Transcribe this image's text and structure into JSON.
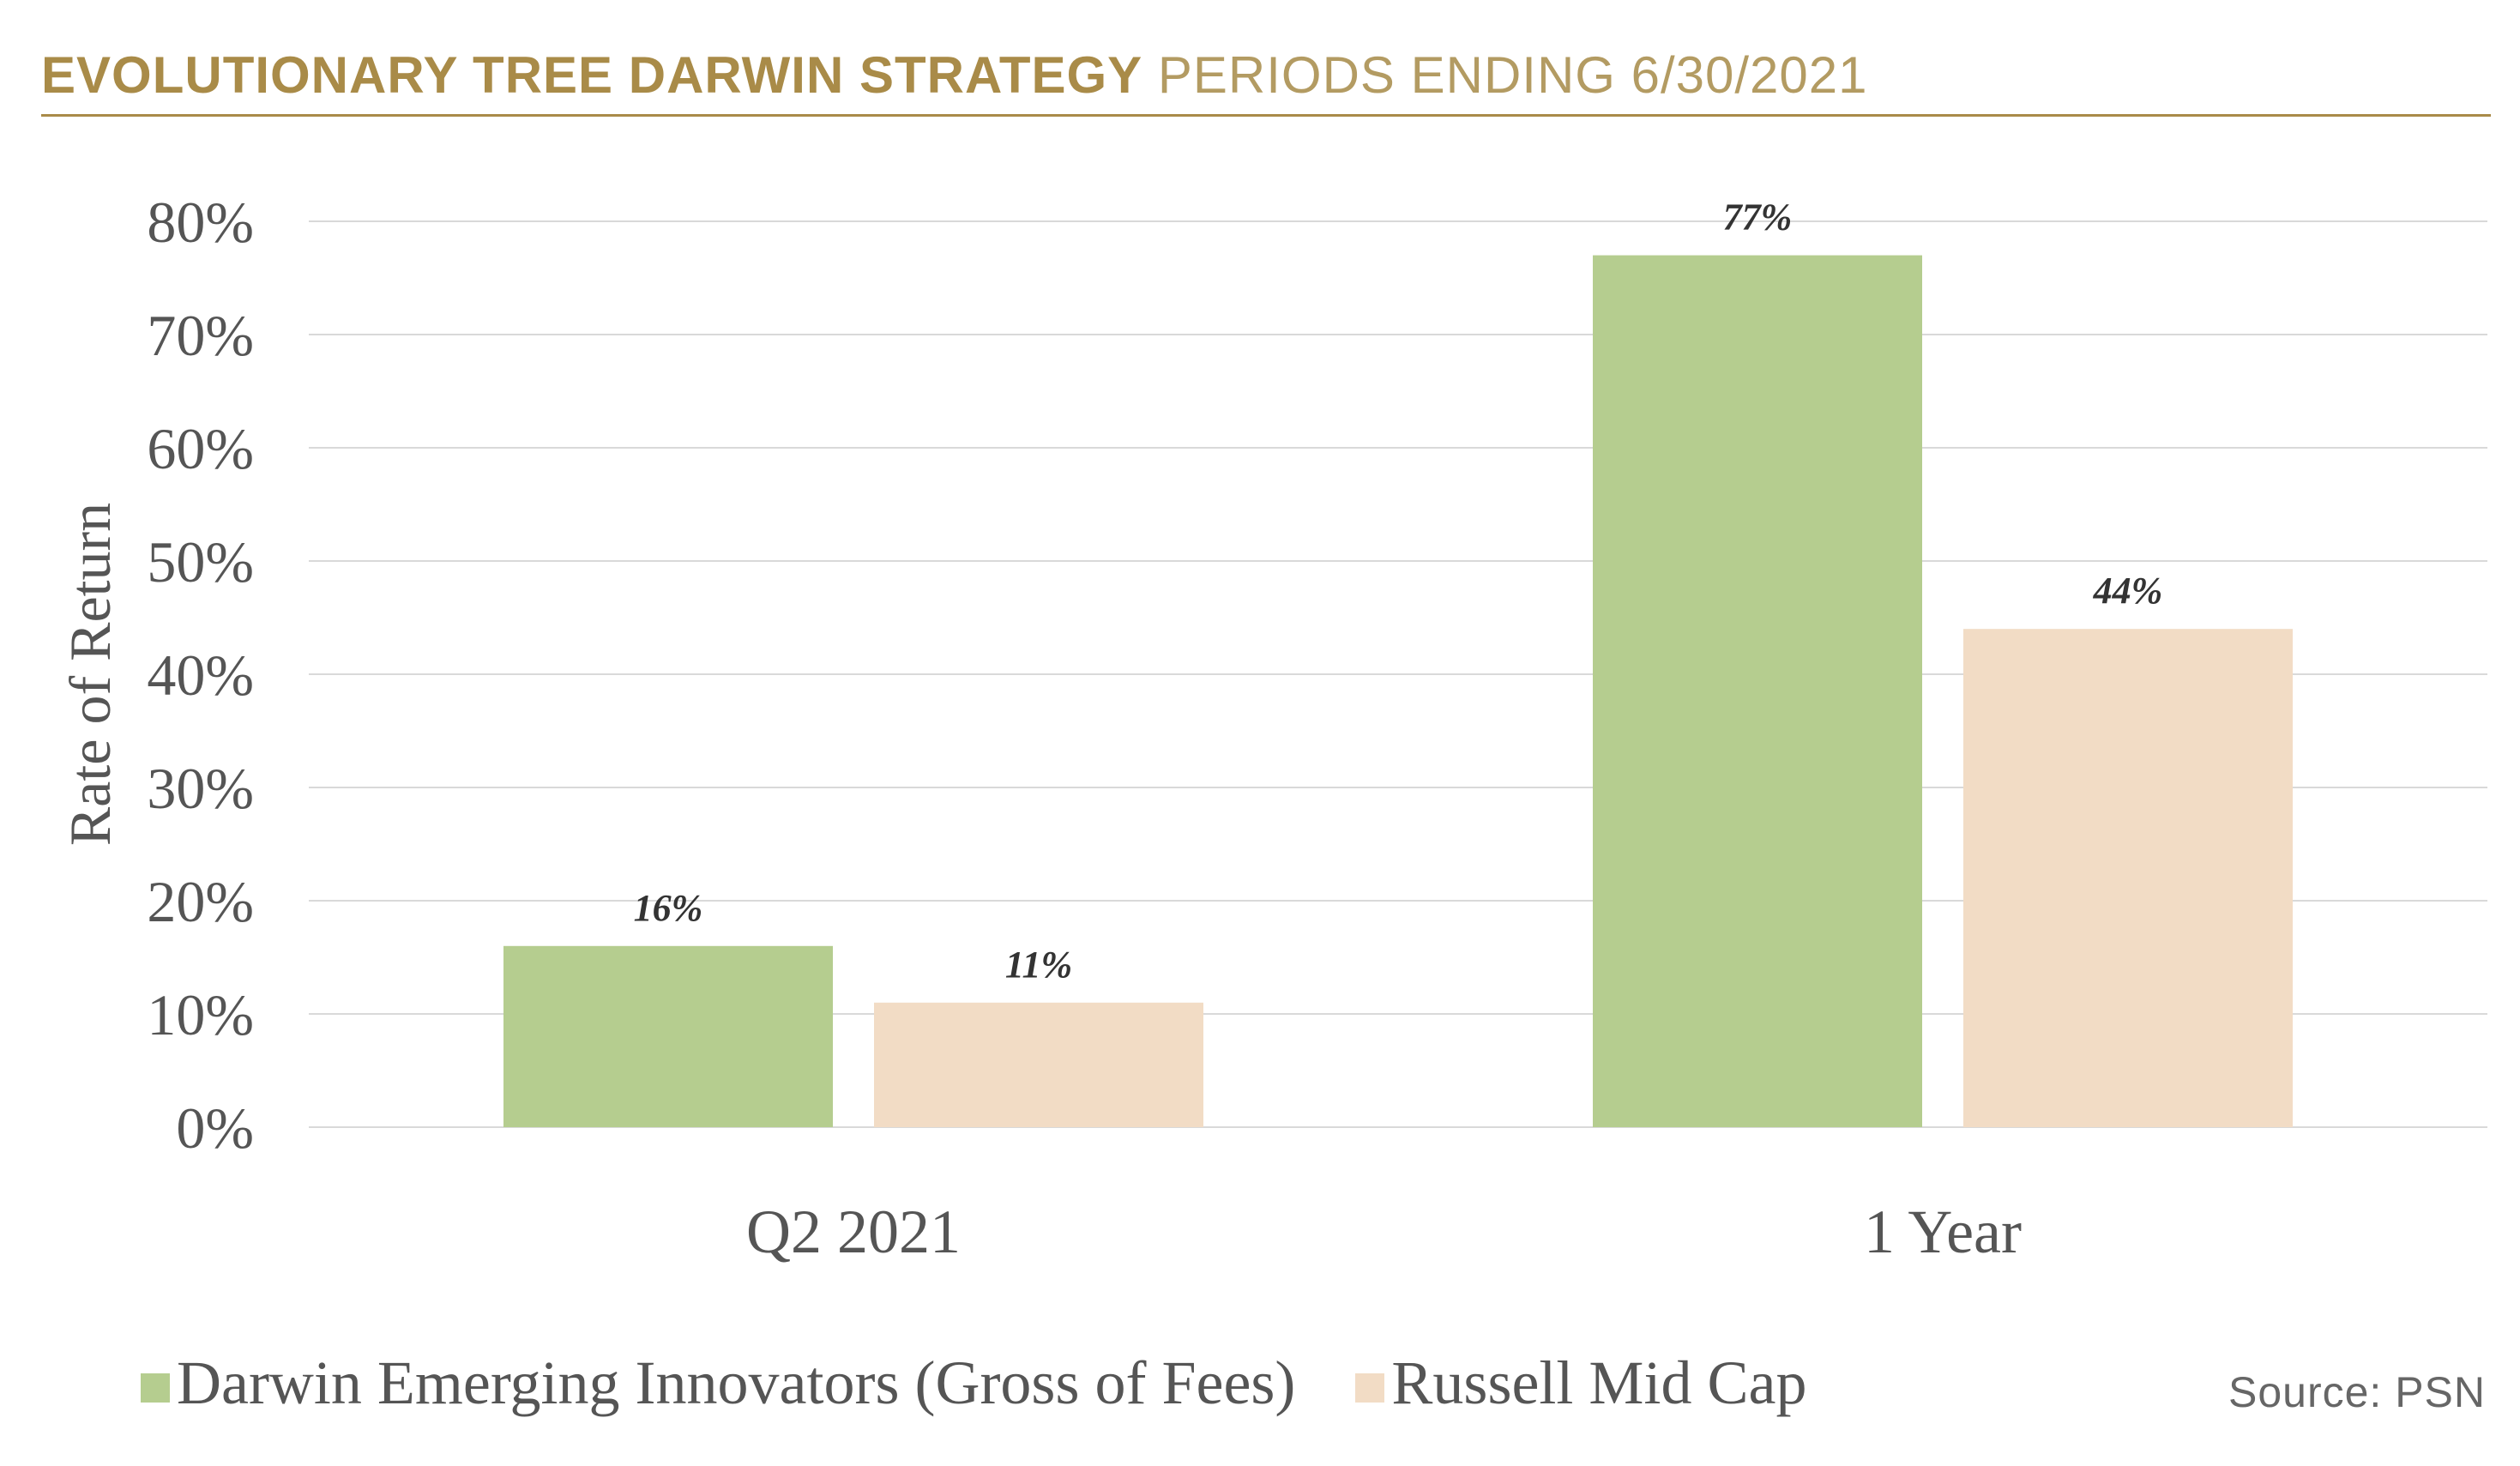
{
  "header": {
    "title_bold": "EVOLUTIONARY TREE DARWIN STRATEGY",
    "title_light": "PERIODS ENDING 6/30/2021"
  },
  "colors": {
    "accent": "#a98b48",
    "series1": "#b5cd8f",
    "series2": "#f2dcc5",
    "grid": "#d9d9d9",
    "text": "#555555"
  },
  "chart_data": {
    "type": "bar",
    "title": "",
    "xlabel": "",
    "ylabel": "Rate of Return",
    "ylim": [
      0,
      80
    ],
    "y_ticks": [
      "0%",
      "10%",
      "20%",
      "30%",
      "40%",
      "50%",
      "60%",
      "70%",
      "80%"
    ],
    "categories": [
      "Q2 2021",
      "1 Year"
    ],
    "series": [
      {
        "name": "Darwin Emerging Innovators (Gross of Fees)",
        "values": [
          16,
          77
        ],
        "labels": [
          "16%",
          "77%"
        ],
        "color": "#b5cd8f"
      },
      {
        "name": "Russell Mid Cap",
        "values": [
          11,
          44
        ],
        "labels": [
          "11%",
          "44%"
        ],
        "color": "#f2dcc5"
      }
    ],
    "grid": true,
    "legend_position": "bottom-left"
  },
  "footer": {
    "source": "Source: PSN"
  }
}
